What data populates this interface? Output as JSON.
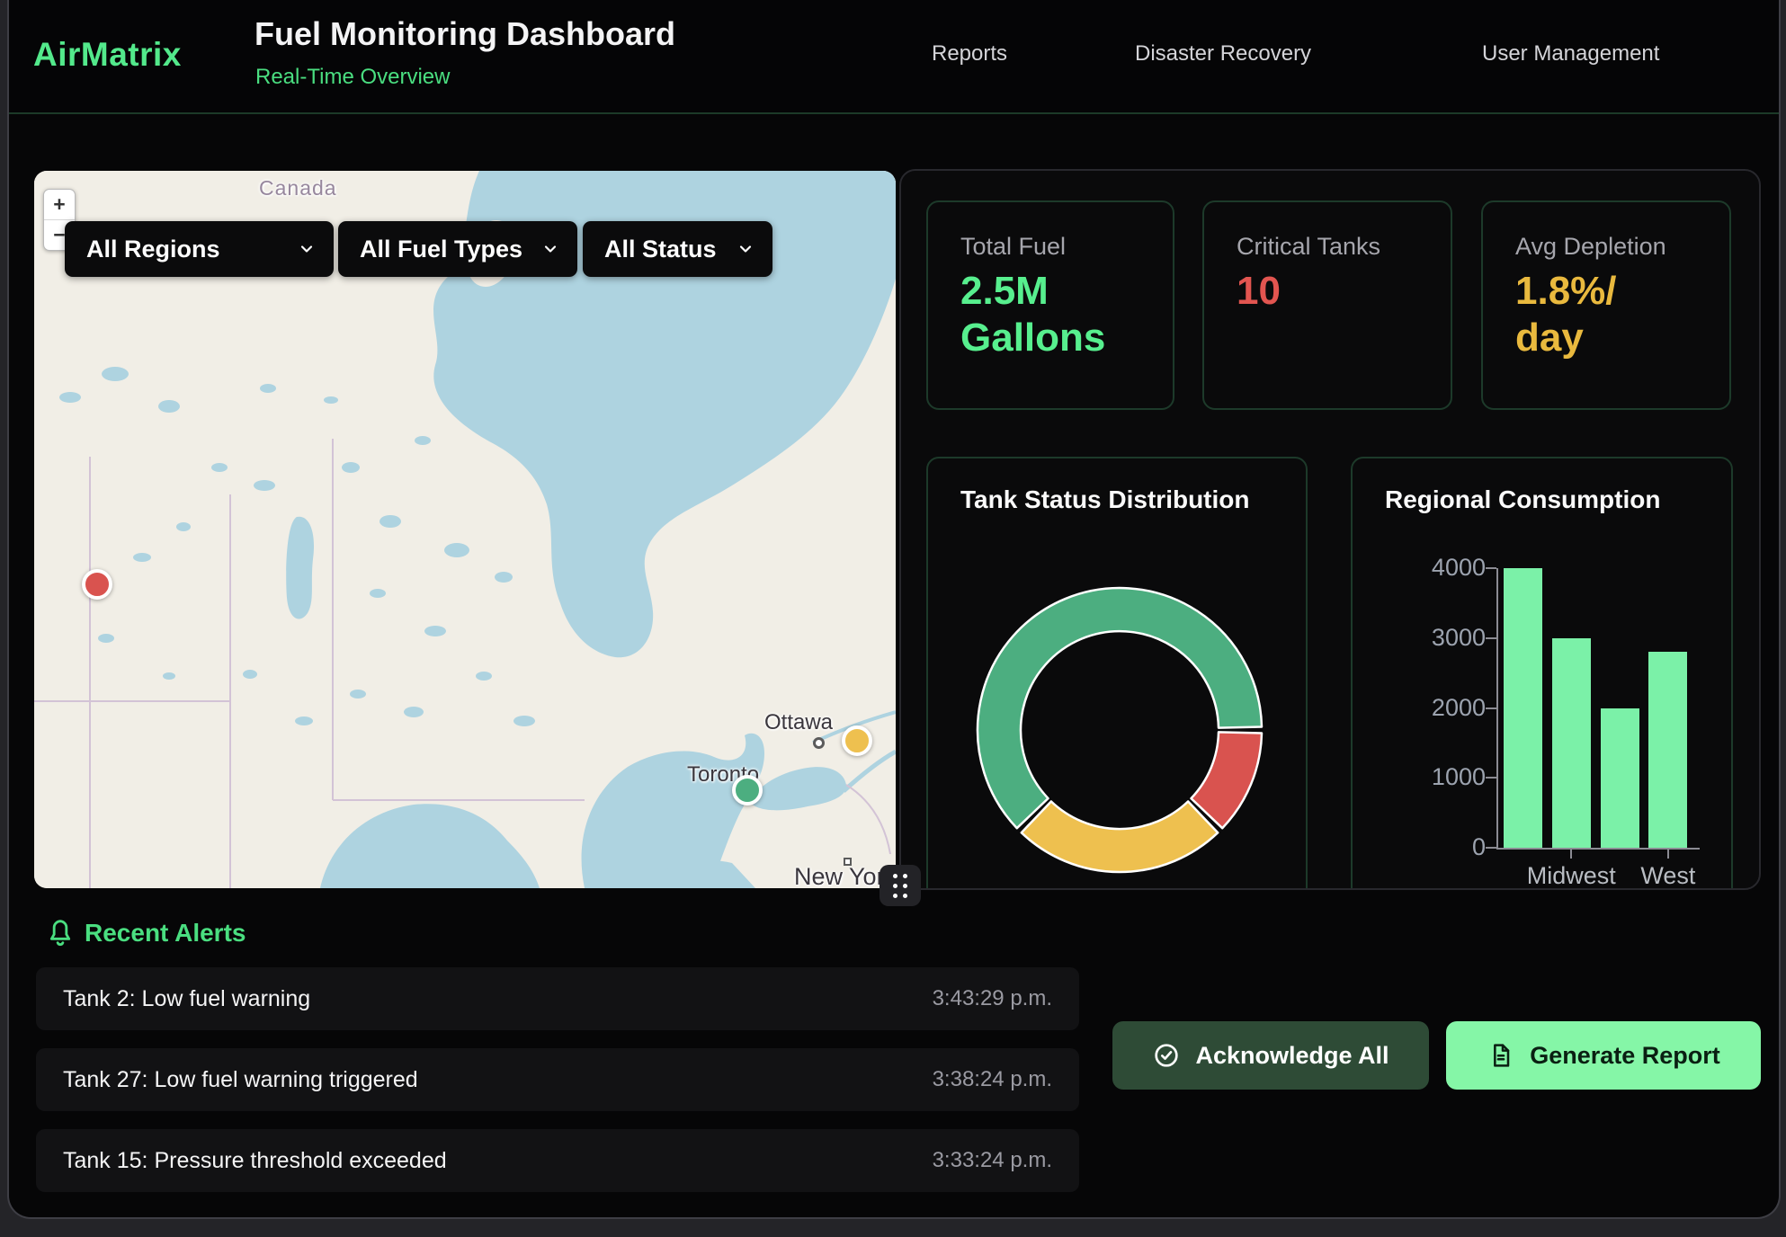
{
  "brand": "AirMatrix",
  "accent_color": "#4ade80",
  "header": {
    "title": "Fuel Monitoring Dashboard",
    "subtitle": "Real-Time Overview",
    "nav": [
      {
        "label": "Reports"
      },
      {
        "label": "Disaster Recovery"
      },
      {
        "label": "User Management"
      }
    ]
  },
  "map": {
    "zoom_in_label": "+",
    "zoom_out_label": "−",
    "filters": [
      {
        "value": "All Regions"
      },
      {
        "value": "All Fuel Types"
      },
      {
        "value": "All Status"
      }
    ],
    "place_labels": {
      "country": "Canada",
      "city_ottawa": "Ottawa",
      "city_toronto": "Toronto",
      "city_new_york": "New York"
    },
    "markers": [
      {
        "color": "#d9534f"
      },
      {
        "color": "#eec04f"
      },
      {
        "color": "#4cae80"
      }
    ]
  },
  "stats": [
    {
      "label": "Total Fuel",
      "value": "2.5M Gallons",
      "color": "#57ef8e"
    },
    {
      "label": "Critical Tanks",
      "value": "10",
      "color": "#e25550"
    },
    {
      "label": "Avg Depletion",
      "value": "1.8%/ day",
      "color": "#e9b93e"
    }
  ],
  "chart_data": [
    {
      "type": "pie",
      "variant": "donut",
      "title": "Tank Status Distribution",
      "legend": "none",
      "start_angle_deg": 90,
      "segments": [
        {
          "label": "red",
          "value": 10,
          "color": "#d9534f"
        },
        {
          "label": "yellow",
          "value": 20,
          "color": "#eec04f"
        },
        {
          "label": "green",
          "value": 50,
          "color": "#4cae80"
        }
      ]
    },
    {
      "type": "bar",
      "title": "Regional Consumption",
      "categories": [
        "",
        "Midwest",
        "",
        "West"
      ],
      "values": [
        4000,
        3000,
        2000,
        2800
      ],
      "ylim": [
        0,
        4000
      ],
      "yticks": [
        0,
        1000,
        2000,
        3000,
        4000
      ],
      "bar_color": "#7bf1a8",
      "axis_color": "#8b8b93",
      "tick_label_color": "#9ca3af",
      "grid": false,
      "legend_position": "none"
    }
  ],
  "alerts": {
    "heading": "Recent Alerts",
    "items": [
      {
        "text": "Tank 2: Low fuel warning",
        "time": "3:43:29 p.m."
      },
      {
        "text": "Tank 27: Low fuel warning triggered",
        "time": "3:38:24 p.m."
      },
      {
        "text": "Tank 15: Pressure threshold exceeded",
        "time": "3:33:24 p.m."
      }
    ],
    "actions": [
      {
        "label": "Acknowledge All",
        "bg": "#2e4b36",
        "fg": "#ffffff"
      },
      {
        "label": "Generate Report",
        "bg": "#85f6a7",
        "fg": "#0a1f12"
      }
    ]
  }
}
